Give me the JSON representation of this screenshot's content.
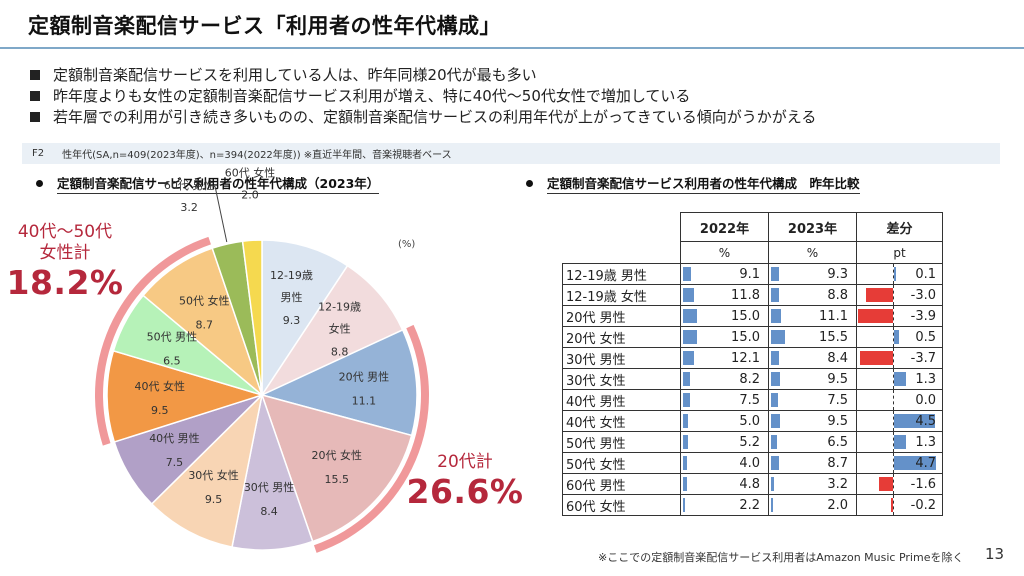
{
  "header": {
    "title": "定額制音楽配信サービス「利用者の性年代構成」"
  },
  "bullets": [
    "定額制音楽配信サービスを利用している人は、昨年同様20代が最も多い",
    "昨年度よりも女性の定額制音楽配信サービス利用が増え、特に40代～50代女性で増加している",
    "若年層での利用が引き続き多いものの、定額制音楽配信サービスの利用年代が上がってきている傾向がうかがえる"
  ],
  "source": {
    "code": "F2",
    "text": "性年代(SA,n=409(2023年度)、n=394(2022年度)) ※直近半年間、音楽視聴者ベース"
  },
  "left_section": {
    "heading": "定額制音楽配信サービス利用者の性年代構成（2023年）",
    "unit": "(%)",
    "callout_4050": {
      "label1": "40代～50代",
      "label2": "女性計",
      "value": "18.2%"
    },
    "callout_20s": {
      "label": "20代計",
      "value": "26.6%"
    }
  },
  "right_section": {
    "heading": "定額制音楽配信サービス利用者の性年代構成　昨年比較",
    "columns": [
      "2022年",
      "2023年",
      "差分"
    ],
    "units": [
      "%",
      "%",
      "pt"
    ]
  },
  "footer": {
    "note": "※ここでの定額制音楽配信サービス利用者はAmazon Music Primeを除く",
    "page": "13"
  },
  "chart_data": [
    {
      "type": "pie",
      "title": "定額制音楽配信サービス利用者の性年代構成（2023年）",
      "unit": "%",
      "start": "12 o'clock, clockwise",
      "slices": [
        {
          "label": "12-19歳 男性",
          "value": 9.3,
          "color": "#dce6f2"
        },
        {
          "label": "12-19歳 女性",
          "value": 8.8,
          "color": "#f2dcdd"
        },
        {
          "label": "20代 男性",
          "value": 11.1,
          "color": "#95b3d7"
        },
        {
          "label": "20代 女性",
          "value": 15.5,
          "color": "#e6b9b8"
        },
        {
          "label": "30代 男性",
          "value": 8.4,
          "color": "#ccc0da"
        },
        {
          "label": "30代 女性",
          "value": 9.5,
          "color": "#f8d5b4"
        },
        {
          "label": "40代 男性",
          "value": 7.5,
          "color": "#b1a0c7"
        },
        {
          "label": "40代 女性",
          "value": 9.5,
          "color": "#f29845"
        },
        {
          "label": "50代 男性",
          "value": 6.5,
          "color": "#b6f2b8"
        },
        {
          "label": "50代 女性",
          "value": 8.7,
          "color": "#f7c984"
        },
        {
          "label": "60代 男性",
          "value": 3.2,
          "color": "#9bbb59"
        },
        {
          "label": "60代 女性",
          "value": 2.0,
          "color": "#f5d94f"
        }
      ],
      "highlight_arcs": [
        {
          "group": "20代計",
          "slices": [
            "20代 男性",
            "20代 女性"
          ],
          "total": 26.6,
          "color": "#f0989a"
        },
        {
          "group": "40代～50代 女性計",
          "slices": [
            "40代 女性",
            "50代 女性"
          ],
          "total": 18.2,
          "color": "#f0989a"
        }
      ]
    },
    {
      "type": "table",
      "title": "定額制音楽配信サービス利用者の性年代構成　昨年比較",
      "columns": [
        "2022年 (%)",
        "2023年 (%)",
        "差分 (pt)"
      ],
      "rows": [
        {
          "label": "12-19歳 男性",
          "y2022": 9.1,
          "y2023": 9.3,
          "diff": 0.1
        },
        {
          "label": "12-19歳 女性",
          "y2022": 11.8,
          "y2023": 8.8,
          "diff": -3.0
        },
        {
          "label": "20代 男性",
          "y2022": 15.0,
          "y2023": 11.1,
          "diff": -3.9
        },
        {
          "label": "20代 女性",
          "y2022": 15.0,
          "y2023": 15.5,
          "diff": 0.5
        },
        {
          "label": "30代 男性",
          "y2022": 12.1,
          "y2023": 8.4,
          "diff": -3.7
        },
        {
          "label": "30代 女性",
          "y2022": 8.2,
          "y2023": 9.5,
          "diff": 1.3
        },
        {
          "label": "40代 男性",
          "y2022": 7.5,
          "y2023": 7.5,
          "diff": 0.0
        },
        {
          "label": "40代 女性",
          "y2022": 5.0,
          "y2023": 9.5,
          "diff": 4.5
        },
        {
          "label": "50代 男性",
          "y2022": 5.2,
          "y2023": 6.5,
          "diff": 1.3
        },
        {
          "label": "50代 女性",
          "y2022": 4.0,
          "y2023": 8.7,
          "diff": 4.7
        },
        {
          "label": "60代 男性",
          "y2022": 4.8,
          "y2023": 3.2,
          "diff": -1.6
        },
        {
          "label": "60代 女性",
          "y2022": 2.2,
          "y2023": 2.0,
          "diff": -0.2
        }
      ],
      "bar_colors": {
        "positive": "#6491c9",
        "negative": "#e63c37"
      }
    }
  ]
}
